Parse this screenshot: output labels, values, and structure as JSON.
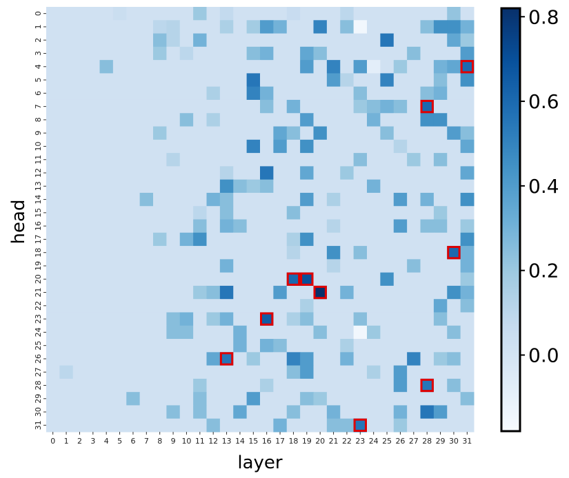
{
  "chart_data": {
    "type": "heatmap",
    "xlabel": "layer",
    "ylabel": "head",
    "x_categories": [
      "0",
      "1",
      "2",
      "3",
      "4",
      "5",
      "6",
      "7",
      "8",
      "9",
      "10",
      "11",
      "12",
      "13",
      "14",
      "15",
      "16",
      "17",
      "18",
      "19",
      "20",
      "21",
      "22",
      "23",
      "24",
      "25",
      "26",
      "27",
      "28",
      "29",
      "30",
      "31"
    ],
    "y_categories": [
      "0",
      "1",
      "2",
      "3",
      "4",
      "5",
      "6",
      "7",
      "8",
      "9",
      "10",
      "11",
      "12",
      "13",
      "14",
      "15",
      "16",
      "17",
      "18",
      "19",
      "20",
      "21",
      "22",
      "23",
      "24",
      "25",
      "26",
      "27",
      "28",
      "29",
      "30",
      "31"
    ],
    "colormap": "Blues",
    "color_range": [
      -0.18,
      0.82
    ],
    "colorbar_ticks": [
      "0.0",
      "0.2",
      "0.4",
      "0.6",
      "0.8"
    ],
    "colorbar_tick_values": [
      0.0,
      0.2,
      0.4,
      0.6,
      0.8
    ],
    "default_value": 0.02,
    "values_sparse": [
      [
        0,
        11,
        0.2
      ],
      [
        0,
        30,
        0.22
      ],
      [
        0,
        5,
        0.05
      ],
      [
        0,
        13,
        0.08
      ],
      [
        0,
        18,
        0.06
      ],
      [
        0,
        22,
        0.1
      ],
      [
        1,
        16,
        0.4
      ],
      [
        1,
        17,
        0.3
      ],
      [
        1,
        20,
        0.5
      ],
      [
        1,
        22,
        0.25
      ],
      [
        1,
        23,
        -0.15
      ],
      [
        1,
        28,
        0.25
      ],
      [
        1,
        29,
        0.45
      ],
      [
        1,
        30,
        0.45
      ],
      [
        1,
        31,
        0.3
      ],
      [
        1,
        8,
        0.1
      ],
      [
        1,
        9,
        0.12
      ],
      [
        1,
        13,
        0.15
      ],
      [
        1,
        15,
        0.18
      ],
      [
        2,
        8,
        0.25
      ],
      [
        2,
        11,
        0.3
      ],
      [
        2,
        25,
        0.55
      ],
      [
        2,
        30,
        0.35
      ],
      [
        2,
        31,
        0.2
      ],
      [
        2,
        9,
        0.12
      ],
      [
        3,
        8,
        0.2
      ],
      [
        3,
        15,
        0.25
      ],
      [
        3,
        16,
        0.3
      ],
      [
        3,
        19,
        0.35
      ],
      [
        3,
        20,
        0.25
      ],
      [
        3,
        27,
        0.25
      ],
      [
        3,
        31,
        0.4
      ],
      [
        3,
        10,
        0.1
      ],
      [
        4,
        4,
        0.25
      ],
      [
        4,
        19,
        0.4
      ],
      [
        4,
        21,
        0.5
      ],
      [
        4,
        23,
        0.4
      ],
      [
        4,
        26,
        0.2
      ],
      [
        4,
        29,
        0.3
      ],
      [
        4,
        30,
        0.35
      ],
      [
        4,
        31,
        0.6
      ],
      [
        4,
        24,
        -0.08
      ],
      [
        5,
        15,
        0.55
      ],
      [
        5,
        21,
        0.4
      ],
      [
        5,
        25,
        0.5
      ],
      [
        5,
        29,
        0.25
      ],
      [
        5,
        31,
        0.45
      ],
      [
        5,
        22,
        0.12
      ],
      [
        6,
        15,
        0.5
      ],
      [
        6,
        16,
        0.3
      ],
      [
        6,
        23,
        0.25
      ],
      [
        6,
        28,
        0.25
      ],
      [
        6,
        29,
        0.3
      ],
      [
        6,
        12,
        0.15
      ],
      [
        7,
        16,
        0.25
      ],
      [
        7,
        18,
        0.3
      ],
      [
        7,
        23,
        0.2
      ],
      [
        7,
        24,
        0.25
      ],
      [
        7,
        25,
        0.3
      ],
      [
        7,
        26,
        0.25
      ],
      [
        7,
        28,
        0.6
      ],
      [
        8,
        10,
        0.25
      ],
      [
        8,
        19,
        0.4
      ],
      [
        8,
        24,
        0.3
      ],
      [
        8,
        28,
        0.45
      ],
      [
        8,
        29,
        0.45
      ],
      [
        8,
        12,
        0.15
      ],
      [
        9,
        8,
        0.2
      ],
      [
        9,
        17,
        0.35
      ],
      [
        9,
        18,
        0.25
      ],
      [
        9,
        20,
        0.45
      ],
      [
        9,
        25,
        0.25
      ],
      [
        9,
        30,
        0.4
      ],
      [
        9,
        31,
        0.25
      ],
      [
        10,
        15,
        0.5
      ],
      [
        10,
        17,
        0.4
      ],
      [
        10,
        19,
        0.45
      ],
      [
        10,
        31,
        0.35
      ],
      [
        10,
        26,
        0.12
      ],
      [
        11,
        23,
        0.25
      ],
      [
        11,
        27,
        0.2
      ],
      [
        11,
        29,
        0.25
      ],
      [
        11,
        9,
        0.12
      ],
      [
        12,
        16,
        0.55
      ],
      [
        12,
        19,
        0.35
      ],
      [
        12,
        22,
        0.2
      ],
      [
        12,
        31,
        0.35
      ],
      [
        12,
        13,
        0.12
      ],
      [
        13,
        13,
        0.45
      ],
      [
        13,
        14,
        0.25
      ],
      [
        13,
        15,
        0.2
      ],
      [
        13,
        16,
        0.25
      ],
      [
        13,
        24,
        0.3
      ],
      [
        14,
        7,
        0.25
      ],
      [
        14,
        12,
        0.3
      ],
      [
        14,
        13,
        0.25
      ],
      [
        14,
        19,
        0.4
      ],
      [
        14,
        26,
        0.4
      ],
      [
        14,
        28,
        0.3
      ],
      [
        14,
        31,
        0.45
      ],
      [
        14,
        21,
        0.15
      ],
      [
        15,
        13,
        0.25
      ],
      [
        15,
        18,
        0.25
      ],
      [
        15,
        29,
        0.2
      ],
      [
        15,
        11,
        0.1
      ],
      [
        16,
        11,
        0.25
      ],
      [
        16,
        13,
        0.3
      ],
      [
        16,
        14,
        0.25
      ],
      [
        16,
        26,
        0.4
      ],
      [
        16,
        28,
        0.25
      ],
      [
        16,
        29,
        0.25
      ],
      [
        16,
        31,
        0.2
      ],
      [
        16,
        21,
        0.12
      ],
      [
        17,
        8,
        0.2
      ],
      [
        17,
        10,
        0.3
      ],
      [
        17,
        11,
        0.45
      ],
      [
        17,
        19,
        0.45
      ],
      [
        17,
        31,
        0.45
      ],
      [
        17,
        18,
        0.15
      ],
      [
        18,
        21,
        0.45
      ],
      [
        18,
        23,
        0.25
      ],
      [
        18,
        30,
        0.6
      ],
      [
        18,
        31,
        0.3
      ],
      [
        18,
        18,
        0.12
      ],
      [
        19,
        13,
        0.3
      ],
      [
        19,
        27,
        0.25
      ],
      [
        19,
        31,
        0.3
      ],
      [
        19,
        21,
        0.12
      ],
      [
        20,
        18,
        0.6
      ],
      [
        20,
        19,
        0.7
      ],
      [
        20,
        25,
        0.45
      ],
      [
        20,
        31,
        0.2
      ],
      [
        21,
        12,
        0.25
      ],
      [
        21,
        13,
        0.55
      ],
      [
        21,
        17,
        0.4
      ],
      [
        21,
        20,
        0.82
      ],
      [
        21,
        22,
        0.3
      ],
      [
        21,
        30,
        0.45
      ],
      [
        21,
        31,
        0.3
      ],
      [
        21,
        11,
        0.2
      ],
      [
        22,
        29,
        0.35
      ],
      [
        22,
        31,
        0.25
      ],
      [
        22,
        19,
        0.15
      ],
      [
        23,
        9,
        0.25
      ],
      [
        23,
        10,
        0.3
      ],
      [
        23,
        12,
        0.2
      ],
      [
        23,
        13,
        0.3
      ],
      [
        23,
        16,
        0.65
      ],
      [
        23,
        19,
        0.25
      ],
      [
        23,
        23,
        0.25
      ],
      [
        23,
        29,
        0.25
      ],
      [
        23,
        18,
        0.15
      ],
      [
        24,
        9,
        0.25
      ],
      [
        24,
        10,
        0.25
      ],
      [
        24,
        14,
        0.3
      ],
      [
        24,
        20,
        0.25
      ],
      [
        24,
        23,
        -0.15
      ],
      [
        24,
        24,
        0.2
      ],
      [
        24,
        30,
        0.25
      ],
      [
        25,
        14,
        0.3
      ],
      [
        25,
        16,
        0.3
      ],
      [
        25,
        17,
        0.25
      ],
      [
        25,
        22,
        0.15
      ],
      [
        26,
        12,
        0.35
      ],
      [
        26,
        13,
        0.55
      ],
      [
        26,
        15,
        0.2
      ],
      [
        26,
        18,
        0.5
      ],
      [
        26,
        19,
        0.4
      ],
      [
        26,
        22,
        0.3
      ],
      [
        26,
        27,
        0.5
      ],
      [
        26,
        30,
        0.25
      ],
      [
        26,
        29,
        0.2
      ],
      [
        27,
        1,
        0.1
      ],
      [
        27,
        18,
        0.25
      ],
      [
        27,
        19,
        0.4
      ],
      [
        27,
        26,
        0.4
      ],
      [
        27,
        24,
        0.15
      ],
      [
        28,
        11,
        0.2
      ],
      [
        28,
        26,
        0.4
      ],
      [
        28,
        28,
        0.55
      ],
      [
        28,
        30,
        0.25
      ],
      [
        28,
        16,
        0.15
      ],
      [
        29,
        6,
        0.25
      ],
      [
        29,
        11,
        0.25
      ],
      [
        29,
        15,
        0.4
      ],
      [
        29,
        19,
        0.25
      ],
      [
        29,
        20,
        0.2
      ],
      [
        29,
        31,
        0.25
      ],
      [
        30,
        9,
        0.25
      ],
      [
        30,
        11,
        0.25
      ],
      [
        30,
        14,
        0.35
      ],
      [
        30,
        18,
        0.25
      ],
      [
        30,
        21,
        0.3
      ],
      [
        30,
        26,
        0.3
      ],
      [
        30,
        28,
        0.55
      ],
      [
        30,
        29,
        0.4
      ],
      [
        31,
        12,
        0.25
      ],
      [
        31,
        17,
        0.3
      ],
      [
        31,
        21,
        0.25
      ],
      [
        31,
        22,
        0.25
      ],
      [
        31,
        23,
        0.55
      ],
      [
        31,
        26,
        0.2
      ]
    ],
    "highlighted_cells": [
      [
        4,
        31
      ],
      [
        7,
        28
      ],
      [
        18,
        30
      ],
      [
        20,
        18
      ],
      [
        20,
        19
      ],
      [
        21,
        20
      ],
      [
        23,
        16
      ],
      [
        26,
        13
      ],
      [
        28,
        28
      ],
      [
        31,
        23
      ]
    ],
    "highlight_color": "#e00000"
  }
}
